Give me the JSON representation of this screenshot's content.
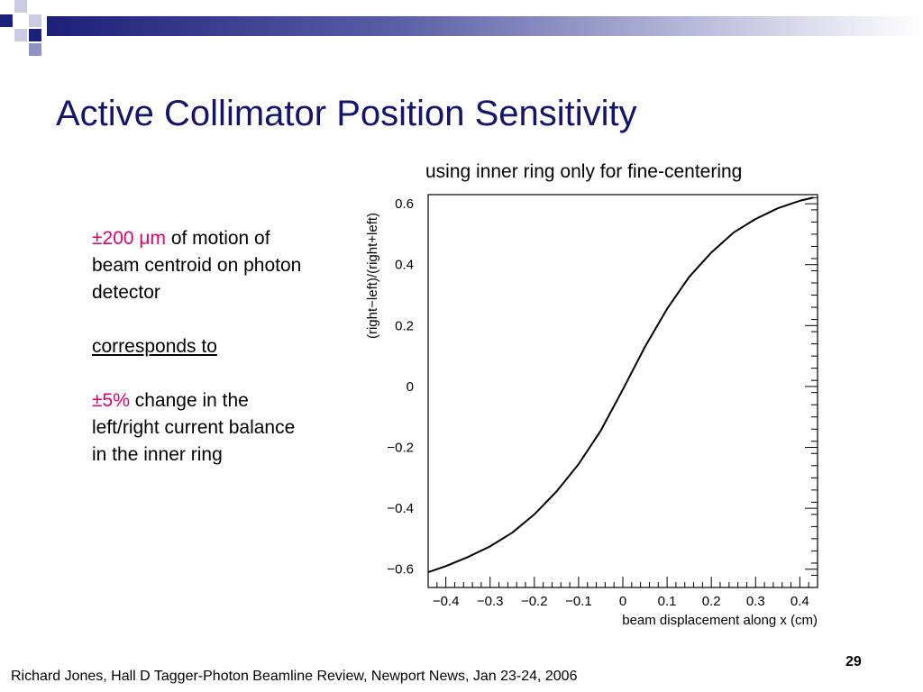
{
  "slide": {
    "title": "Active Collimator Position Sensitivity",
    "footer": "Richard Jones, Hall D Tagger-Photon Beamline Review, Newport News, Jan 23-24, 2006",
    "page_number": "29",
    "accent_color": "#1c1f78",
    "title_color": "#14146e",
    "highlight_color": "#e0006e"
  },
  "text_block": {
    "p1_highlight": "±200 μm",
    "p1_rest": " of motion of beam centroid on photon detector",
    "p2": "corresponds to",
    "p3_highlight": "±5%",
    "p3_rest": " change in the left/right current balance in the inner ring"
  },
  "plot_caption": "using inner ring only for fine-centering",
  "chart_data": {
    "type": "line",
    "title": "",
    "xlabel": "beam displacement along x (cm)",
    "ylabel": "(right−left)/(right+left)",
    "xlim": [
      -0.44,
      0.44
    ],
    "ylim": [
      -0.66,
      0.63
    ],
    "x_ticks": [
      -0.4,
      -0.3,
      -0.2,
      -0.1,
      0,
      0.1,
      0.2,
      0.3,
      0.4
    ],
    "x_tick_labels": [
      "−0.4",
      "−0.3",
      "−0.2",
      "−0.1",
      "0",
      "0.1",
      "0.2",
      "0.3",
      "0.4"
    ],
    "y_ticks": [
      -0.6,
      -0.4,
      -0.2,
      0,
      0.2,
      0.4,
      0.6
    ],
    "y_tick_labels": [
      "−0.6",
      "−0.4",
      "−0.2",
      "0",
      "0.2",
      "0.4",
      "0.6"
    ],
    "grid": false,
    "series": [
      {
        "x": [
          -0.44,
          -0.4,
          -0.35,
          -0.3,
          -0.25,
          -0.2,
          -0.15,
          -0.1,
          -0.05,
          0.0,
          0.05,
          0.1,
          0.15,
          0.2,
          0.25,
          0.3,
          0.35,
          0.4,
          0.43
        ],
        "y": [
          -0.61,
          -0.59,
          -0.56,
          -0.525,
          -0.48,
          -0.42,
          -0.345,
          -0.255,
          -0.145,
          -0.01,
          0.13,
          0.255,
          0.36,
          0.44,
          0.505,
          0.55,
          0.585,
          0.61,
          0.62
        ]
      }
    ]
  }
}
